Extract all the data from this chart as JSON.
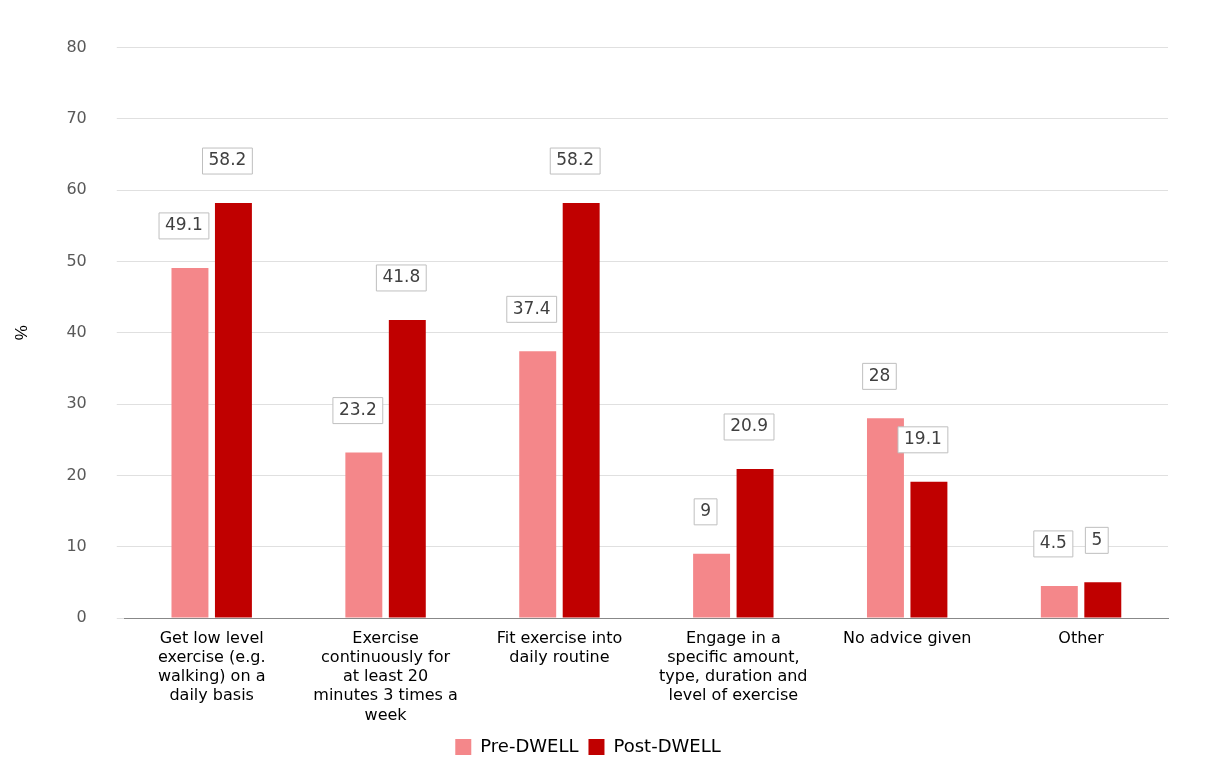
{
  "chart_data": {
    "type": "bar",
    "ylabel": "%",
    "categories": [
      "Get low level exercise (e.g. walking) on a daily basis",
      "Exercise continuously for at least 20 minutes 3 times a week",
      "Fit exercise into daily routine",
      "Engage in a specific amount, type, duration and level of exercise",
      "No advice given",
      "Other"
    ],
    "series": [
      {
        "name": "Pre-DWELL",
        "color": "#f4878a",
        "values": [
          49.1,
          23.2,
          37.4,
          9,
          28,
          4.5
        ]
      },
      {
        "name": "Post-DWELL",
        "color": "#c00000",
        "values": [
          58.2,
          41.8,
          58.2,
          20.9,
          19.1,
          5
        ]
      }
    ],
    "ylim": [
      0,
      80
    ],
    "yticks": [
      0,
      10,
      20,
      30,
      40,
      50,
      60,
      70,
      80
    ],
    "grid": "y",
    "legend": "bottom",
    "data_labels": true
  }
}
